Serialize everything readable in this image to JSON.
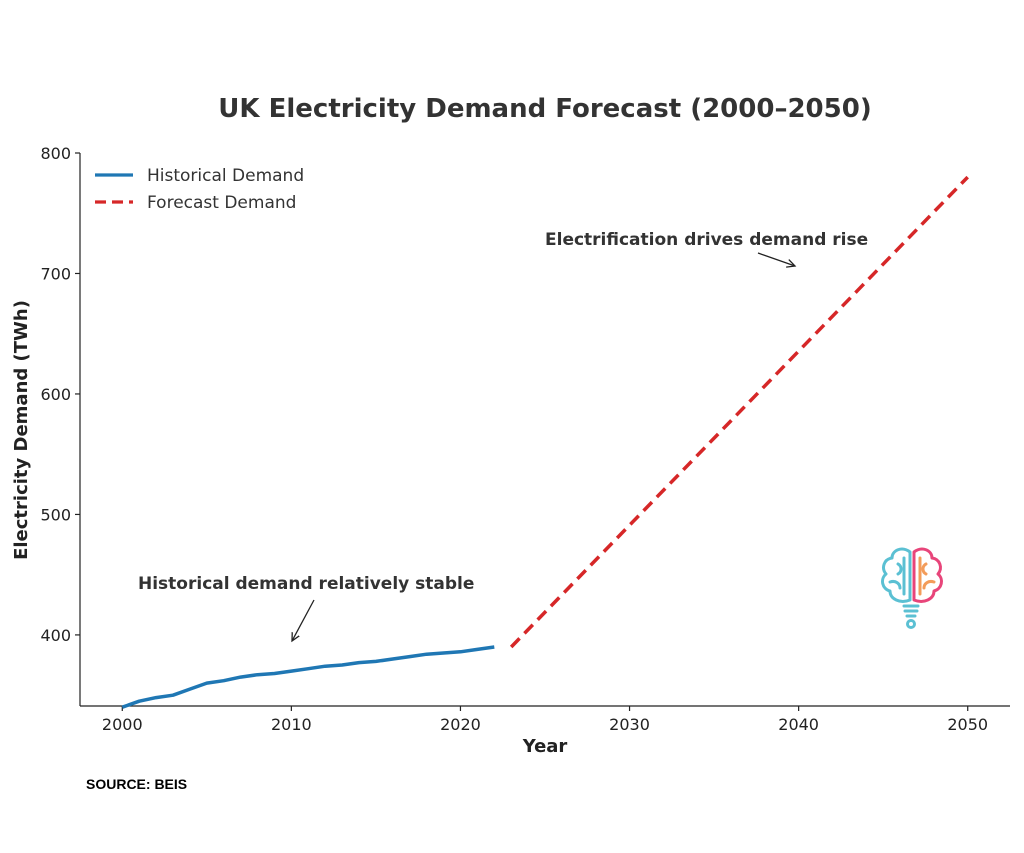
{
  "chart_data": {
    "type": "line",
    "title": "UK Electricity Demand Forecast (2000–2050)",
    "xlabel": "Year",
    "ylabel": "Electricity Demand (TWh)",
    "xlim": [
      1997.5,
      2052.5
    ],
    "ylim": [
      341,
      800
    ],
    "xticks": [
      2000,
      2010,
      2020,
      2030,
      2040,
      2050
    ],
    "yticks": [
      400,
      500,
      600,
      700,
      800
    ],
    "grid": false,
    "legend_position": "top-left",
    "series": [
      {
        "name": "Historical Demand",
        "style": "solid",
        "color": "#1f77b4",
        "x": [
          2000,
          2001,
          2002,
          2003,
          2004,
          2005,
          2006,
          2007,
          2008,
          2009,
          2010,
          2011,
          2012,
          2013,
          2014,
          2015,
          2016,
          2017,
          2018,
          2019,
          2020,
          2021,
          2022
        ],
        "y": [
          340,
          345,
          348,
          350,
          355,
          360,
          362,
          365,
          367,
          368,
          370,
          372,
          374,
          375,
          377,
          378,
          380,
          382,
          384,
          385,
          386,
          388,
          390
        ]
      },
      {
        "name": "Forecast Demand",
        "style": "dashed",
        "color": "#d62728",
        "x": [
          2023,
          2050
        ],
        "y": [
          390,
          780
        ]
      }
    ],
    "annotations": [
      {
        "text": "Historical demand relatively stable",
        "target_x": 2010,
        "target_y": 371,
        "text_x": 2001,
        "text_y": 420
      },
      {
        "text": "Electrification drives demand rise",
        "target_x": 2040,
        "target_y": 700,
        "text_x": 2025,
        "text_y": 720
      }
    ]
  },
  "footer": {
    "source": "SOURCE: BEIS"
  },
  "logo": {
    "icon": "brain-lightbulb-icon",
    "colors": [
      "#5bc0d3",
      "#e8457a",
      "#f39c5a"
    ]
  }
}
